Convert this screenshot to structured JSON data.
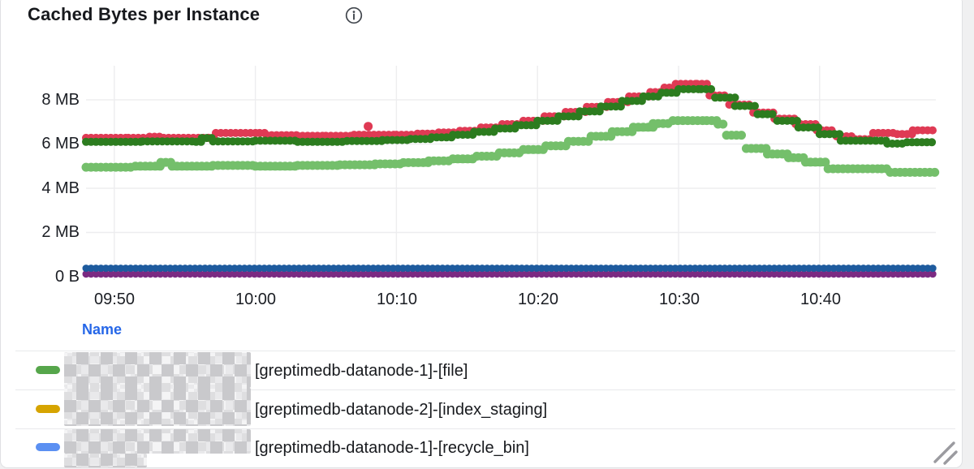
{
  "header": {
    "title": "Cached Bytes per Instance",
    "info_icon": "info-icon"
  },
  "chart_data": {
    "type": "line",
    "style": "dotted-points-step",
    "title": "Cached Bytes per Instance",
    "x_axis": {
      "unit": "time",
      "t0": "09:48",
      "domain_minutes": [
        0,
        60.2
      ],
      "ticks": [
        "09:50",
        "10:00",
        "10:10",
        "10:20",
        "10:30",
        "10:40"
      ],
      "tick_minutes": [
        2,
        12,
        22,
        32,
        42,
        52
      ]
    },
    "y_axis": {
      "unit": "bytes",
      "ticks": [
        "0 B",
        "2 MB",
        "4 MB",
        "6 MB",
        "8 MB"
      ],
      "tick_values_mb": [
        0,
        2,
        4,
        6,
        8
      ],
      "ylim_mb": [
        0,
        9.5
      ]
    },
    "grid": true,
    "legend_position": "bottom-table",
    "series": [
      {
        "name": "light-green-series",
        "color": "#74bf6b",
        "width": 11,
        "points": [
          [
            0,
            4.95
          ],
          [
            3.5,
            5.0
          ],
          [
            5.3,
            5.17
          ],
          [
            6.1,
            5.0
          ],
          [
            9,
            5.03
          ],
          [
            12,
            5.0
          ],
          [
            15,
            5.03
          ],
          [
            18,
            5.06
          ],
          [
            20.5,
            5.1
          ],
          [
            22.5,
            5.16
          ],
          [
            24.3,
            5.24
          ],
          [
            26,
            5.33
          ],
          [
            27.7,
            5.45
          ],
          [
            29.3,
            5.6
          ],
          [
            31,
            5.75
          ],
          [
            32.6,
            5.92
          ],
          [
            34.2,
            6.12
          ],
          [
            35.8,
            6.35
          ],
          [
            37.3,
            6.56
          ],
          [
            38.8,
            6.76
          ],
          [
            40.2,
            6.93
          ],
          [
            41.6,
            7.06
          ],
          [
            44,
            7.06
          ],
          [
            44.8,
            6.9
          ],
          [
            45.4,
            6.4
          ],
          [
            46.8,
            5.8
          ],
          [
            48.3,
            5.55
          ],
          [
            49.8,
            5.38
          ],
          [
            51,
            5.18
          ],
          [
            52.6,
            4.88
          ],
          [
            56.4,
            4.88
          ],
          [
            57,
            4.72
          ],
          [
            60.2,
            4.75
          ]
        ]
      },
      {
        "name": "red-series",
        "color": "#df3a54",
        "width": 10,
        "points": [
          [
            0,
            6.28
          ],
          [
            3,
            6.28
          ],
          [
            4.5,
            6.33
          ],
          [
            5.5,
            6.28
          ],
          [
            8.7,
            6.28
          ],
          [
            9.2,
            6.5
          ],
          [
            12.3,
            6.5
          ],
          [
            12.8,
            6.4
          ],
          [
            15,
            6.37
          ],
          [
            17,
            6.37
          ],
          [
            19,
            6.42
          ],
          [
            22,
            6.42
          ],
          [
            23.5,
            6.47
          ],
          [
            25,
            6.52
          ],
          [
            26.5,
            6.6
          ],
          [
            28,
            6.75
          ],
          [
            29.5,
            6.9
          ],
          [
            31,
            7.05
          ],
          [
            32.5,
            7.25
          ],
          [
            34,
            7.45
          ],
          [
            35.5,
            7.68
          ],
          [
            37,
            7.9
          ],
          [
            38.5,
            8.15
          ],
          [
            40,
            8.35
          ],
          [
            41,
            8.55
          ],
          [
            41.8,
            8.72
          ],
          [
            43.3,
            8.72
          ],
          [
            44.2,
            8.2
          ],
          [
            45.6,
            7.78
          ],
          [
            47.3,
            7.42
          ],
          [
            48.8,
            7.15
          ],
          [
            50.3,
            6.9
          ],
          [
            51.8,
            6.62
          ],
          [
            53.2,
            6.35
          ],
          [
            54.5,
            6.22
          ],
          [
            55.8,
            6.5
          ],
          [
            57.5,
            6.45
          ],
          [
            58.6,
            6.62
          ],
          [
            60.2,
            6.62
          ]
        ]
      },
      {
        "name": "dark-green-series",
        "color": "#2c7c1f",
        "width": 10,
        "points": [
          [
            0,
            6.1
          ],
          [
            4,
            6.12
          ],
          [
            7.8,
            6.1
          ],
          [
            8.2,
            6.27
          ],
          [
            9,
            6.12
          ],
          [
            12,
            6.15
          ],
          [
            15,
            6.1
          ],
          [
            18.5,
            6.14
          ],
          [
            21,
            6.18
          ],
          [
            23,
            6.23
          ],
          [
            24.5,
            6.3
          ],
          [
            26,
            6.42
          ],
          [
            27.5,
            6.55
          ],
          [
            29,
            6.7
          ],
          [
            30.5,
            6.85
          ],
          [
            32,
            7.05
          ],
          [
            33.5,
            7.25
          ],
          [
            35,
            7.48
          ],
          [
            36.5,
            7.7
          ],
          [
            38,
            7.95
          ],
          [
            39.5,
            8.15
          ],
          [
            40.8,
            8.32
          ],
          [
            42,
            8.48
          ],
          [
            43.6,
            8.48
          ],
          [
            44.6,
            8.1
          ],
          [
            46,
            7.72
          ],
          [
            47.6,
            7.35
          ],
          [
            49,
            7.05
          ],
          [
            50.5,
            6.75
          ],
          [
            52,
            6.45
          ],
          [
            53.5,
            6.15
          ],
          [
            56,
            6.15
          ],
          [
            56.8,
            6.02
          ],
          [
            58.2,
            6.08
          ],
          [
            60.2,
            6.1
          ]
        ]
      },
      {
        "name": "purple-series",
        "color": "#7b2a82",
        "width": 9,
        "points": [
          [
            0,
            0.12
          ],
          [
            60.2,
            0.12
          ]
        ]
      },
      {
        "name": "navy-blue-series",
        "color": "#1e5b9e",
        "width": 9,
        "points": [
          [
            0,
            0.38
          ],
          [
            60.2,
            0.38
          ]
        ]
      },
      {
        "name": "red-outlier-point",
        "color": "#df3a54",
        "render": "dot",
        "width": 11,
        "points": [
          [
            20,
            6.8
          ]
        ]
      }
    ]
  },
  "legend": {
    "header": "Name",
    "rows": [
      {
        "swatch_color": "#56a64b",
        "redacted_prefix": true,
        "label": "[greptimedb-datanode-1]-[file]"
      },
      {
        "swatch_color": "#d6a400",
        "redacted_prefix": true,
        "label": "[greptimedb-datanode-2]-[index_staging]"
      },
      {
        "swatch_color": "#5b90f2",
        "redacted_prefix": true,
        "label": "[greptimedb-datanode-1]-[recycle_bin]"
      }
    ]
  },
  "colors": {
    "grid": "#ededef",
    "axis_text": "#1b1e24",
    "legend_header": "#2667e8",
    "panel_background": "#ffffff",
    "page_background": "#f0f0f1"
  }
}
